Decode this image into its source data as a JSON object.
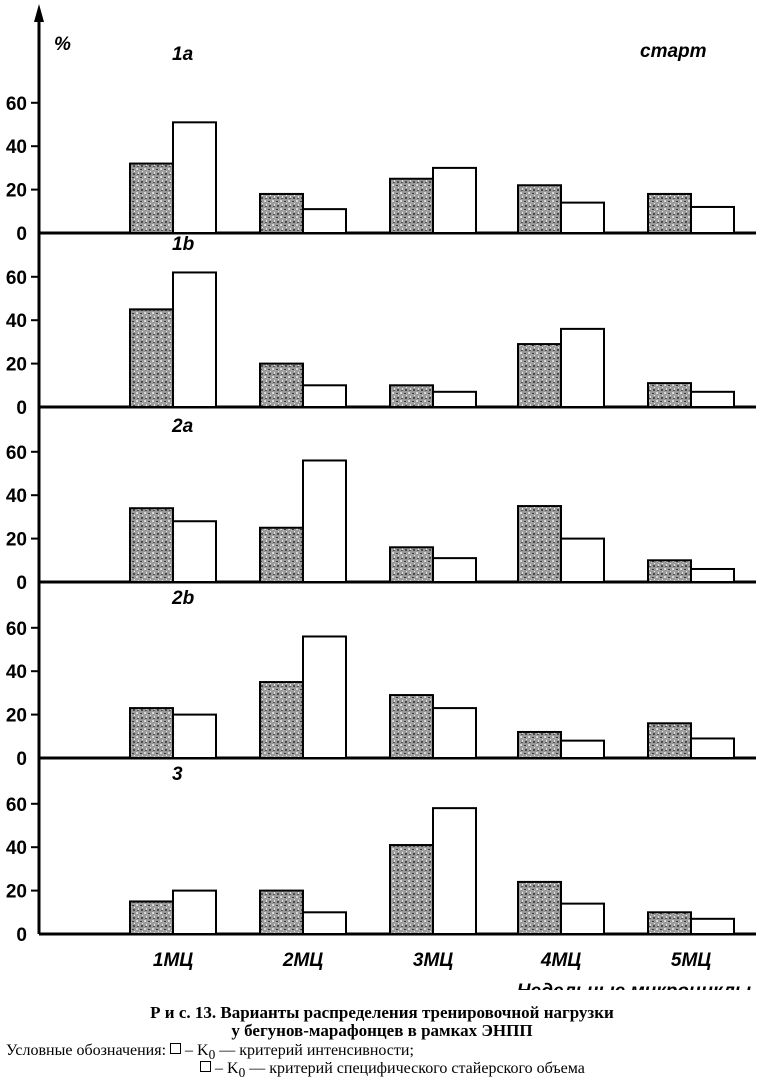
{
  "chart_data": {
    "type": "bar",
    "ylabel": "%",
    "xlabel": "Недельные микроциклы",
    "corner_label": "старт",
    "categories": [
      "1МЦ",
      "2МЦ",
      "3МЦ",
      "4МЦ",
      "5МЦ"
    ],
    "ylim": [
      0,
      70
    ],
    "yticks": [
      0,
      20,
      40,
      60
    ],
    "series_names": [
      "К0 — критерий интенсивности",
      "К0 — критерий специфического стайерского объема"
    ],
    "panels": [
      {
        "label": "1а",
        "intensity": [
          32,
          18,
          25,
          22,
          18
        ],
        "volume": [
          51,
          11,
          30,
          14,
          12
        ]
      },
      {
        "label": "1b",
        "intensity": [
          45,
          20,
          10,
          29,
          11
        ],
        "volume": [
          62,
          10,
          7,
          36,
          7
        ]
      },
      {
        "label": "2а",
        "intensity": [
          34,
          25,
          16,
          35,
          10
        ],
        "volume": [
          28,
          56,
          11,
          20,
          6
        ]
      },
      {
        "label": "2b",
        "intensity": [
          23,
          35,
          29,
          12,
          16
        ],
        "volume": [
          20,
          56,
          23,
          8,
          9
        ]
      },
      {
        "label": "3",
        "intensity": [
          15,
          20,
          41,
          24,
          10
        ],
        "volume": [
          20,
          10,
          58,
          14,
          7
        ]
      }
    ]
  },
  "caption": {
    "line1": "Р и с.  13.  Варианты распределения тренировочной нагрузки",
    "line2": "у бегунов-марафонцев в рамках ЭНПП"
  },
  "legend": {
    "prefix": "Условные обозначения:",
    "item1": "– K",
    "item1_sub": "0",
    "item1_desc": " — критерий интенсивности;",
    "item2": "– K",
    "item2_sub": "0",
    "item2_desc": " — критерий специфического стайерского объема"
  }
}
